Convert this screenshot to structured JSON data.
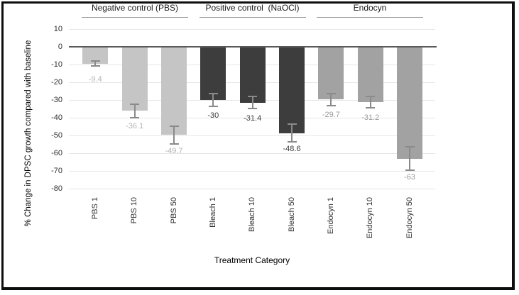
{
  "chart_data": {
    "type": "bar",
    "title": "",
    "xlabel": "Treatment Category",
    "ylabel": "% Change in DPSC growth compared with baseline",
    "ylim": [
      -80,
      10
    ],
    "yticks": [
      10,
      0,
      -10,
      -20,
      -30,
      -40,
      -50,
      -60,
      -70,
      -80
    ],
    "grid": true,
    "legend": "none",
    "groups": [
      {
        "label": "Negative control (PBS)",
        "bar_color": "#c5c5c5",
        "value_label_color": "#b4b4b4"
      },
      {
        "label": "Positive control  (NaOCl)",
        "bar_color": "#3d3d3d",
        "value_label_color": "#3d3d3d"
      },
      {
        "label": "Endocyn",
        "bar_color": "#a2a2a2",
        "value_label_color": "#9b9b9b"
      }
    ],
    "categories": [
      "PBS 1",
      "PBS 10",
      "PBS 50",
      "Bleach 1",
      "Bleach 10",
      "Bleach 50",
      "Endocyn 1",
      "Endocyn 10",
      "Endocyn 50"
    ],
    "series": [
      {
        "name": "% change in DPSC growth",
        "values": [
          -9.4,
          -36.1,
          -49.7,
          -30,
          -31.4,
          -48.6,
          -29.7,
          -31.2,
          -63
        ],
        "value_labels": [
          "-9.4",
          "-36.1",
          "-49.7",
          "-30",
          "-31.4",
          "-48.6",
          "-29.7",
          "-31.2",
          "-63"
        ],
        "errors": [
          1.4,
          3.8,
          5,
          3.5,
          3.3,
          5,
          3.5,
          3.2,
          6.5
        ],
        "group_index": [
          0,
          0,
          0,
          1,
          1,
          1,
          2,
          2,
          2
        ]
      }
    ],
    "colors": {
      "grid_line": "#e6e6e6",
      "zero_line": "#5a5a5a",
      "error_bar": "#8a8a8a",
      "axis_text": "#2e2e2e",
      "header_text": "#1a1a1a",
      "header_underline": "#9a9a9a",
      "frame_border": "#0e0e0e"
    }
  }
}
